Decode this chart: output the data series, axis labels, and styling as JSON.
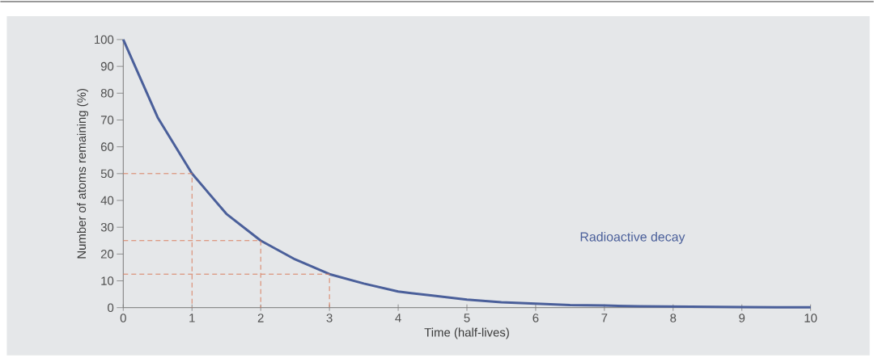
{
  "chart_data": {
    "type": "line",
    "xlabel": "Time (half-lives)",
    "ylabel": "Number of atoms remaining (%)",
    "xlim": [
      0,
      10
    ],
    "ylim": [
      0,
      100
    ],
    "xticks": [
      0,
      1,
      2,
      3,
      4,
      5,
      6,
      7,
      8,
      9,
      10
    ],
    "yticks": [
      0,
      10,
      20,
      30,
      40,
      50,
      60,
      70,
      80,
      90,
      100
    ],
    "series": [
      {
        "name": "Radioactive decay",
        "color": "#4a5f9a",
        "x": [
          0,
          0.5,
          1,
          1.5,
          2,
          2.5,
          3,
          3.5,
          4,
          4.5,
          5,
          5.5,
          6,
          6.5,
          7,
          7.5,
          8,
          8.5,
          9,
          9.5,
          10
        ],
        "values": [
          100,
          71,
          50,
          35,
          25,
          18,
          12.5,
          9,
          6,
          4.5,
          3,
          2,
          1.5,
          1,
          0.8,
          0.5,
          0.4,
          0.3,
          0.2,
          0.1,
          0.1
        ]
      },
      {
        "color": "#d9805f",
        "line_style": "dashed",
        "x": [
          0,
          1,
          1
        ],
        "values": [
          50,
          50,
          0
        ]
      },
      {
        "color": "#d9805f",
        "line_style": "dashed",
        "x": [
          0,
          2,
          2
        ],
        "values": [
          25,
          25,
          0
        ]
      },
      {
        "color": "#d9805f",
        "line_style": "dashed",
        "x": [
          0,
          3,
          3
        ],
        "values": [
          12.5,
          12.5,
          0
        ]
      }
    ]
  }
}
